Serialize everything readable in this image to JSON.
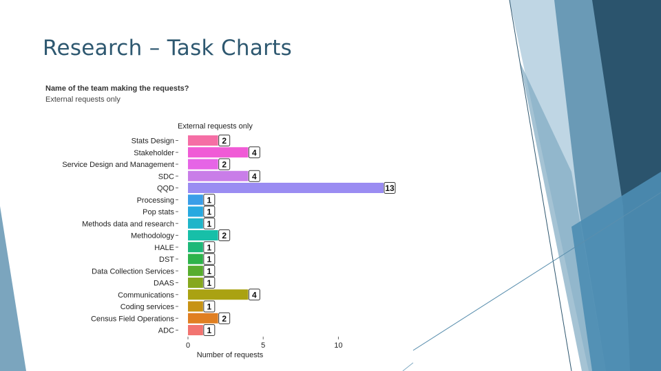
{
  "slide": {
    "title": "Research – Task Charts"
  },
  "colors": {
    "title": "#2e5870",
    "deco_dark": "#2b546d",
    "deco_mid": "#5a8fae",
    "deco_light": "#a9c8db"
  },
  "chart_data": {
    "type": "bar",
    "orientation": "horizontal",
    "title": "Name of the team making the requests?",
    "subtitle": "External requests only",
    "facet_label": "External requests only",
    "xlabel": "Number of requests",
    "ylabel": "",
    "xlim": [
      0,
      13
    ],
    "xticks": [
      0,
      5,
      10
    ],
    "categories": [
      "Stats Design",
      "Stakeholder",
      "Service Design and Management",
      "SDC",
      "QQD",
      "Processing",
      "Pop stats",
      "Methods data and research",
      "Methodology",
      "HALE",
      "DST",
      "Data Collection Services",
      "DAAS",
      "Communications",
      "Coding services",
      "Census Field Operations",
      "ADC"
    ],
    "values": [
      2,
      4,
      2,
      4,
      13,
      1,
      1,
      1,
      2,
      1,
      1,
      1,
      1,
      4,
      1,
      2,
      1
    ],
    "bar_colors": [
      "#f56ea5",
      "#f05bd6",
      "#e665e6",
      "#c97de8",
      "#9a8cf2",
      "#3a9ee8",
      "#27a9e0",
      "#1fb5c9",
      "#17bfa8",
      "#1cb878",
      "#2db34a",
      "#57ad2e",
      "#86a81e",
      "#aaa212",
      "#c79314",
      "#e07f22",
      "#f27470"
    ]
  }
}
